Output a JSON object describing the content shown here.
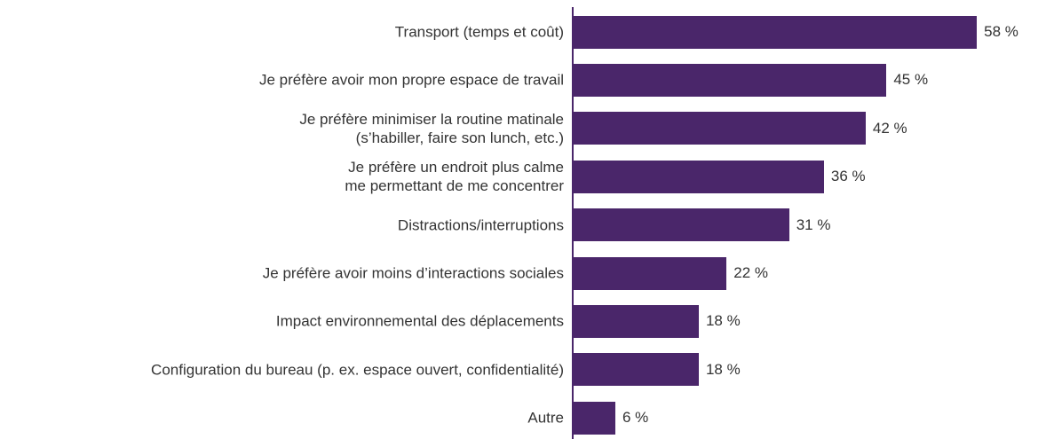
{
  "chart_data": {
    "type": "bar",
    "orientation": "horizontal",
    "color": "#4a266a",
    "categories": [
      "Transport (temps et coût)",
      "Je préfère avoir mon propre espace de travail",
      "Je préfère minimiser la routine matinale\n(s’habiller, faire son lunch, etc.)",
      "Je préfère un endroit plus calme\nme permettant de me concentrer",
      "Distractions/interruptions",
      "Je préfère avoir moins d’interactions sociales",
      "Impact environnemental des déplacements",
      "Configuration du bureau (p. ex. espace ouvert, confidentialité)",
      "Autre"
    ],
    "values": [
      58,
      45,
      42,
      36,
      31,
      22,
      18,
      18,
      6
    ],
    "value_labels": [
      "58 %",
      "45 %",
      "42 %",
      "36 %",
      "31 %",
      "22 %",
      "18 %",
      "18 %",
      "6 %"
    ]
  }
}
